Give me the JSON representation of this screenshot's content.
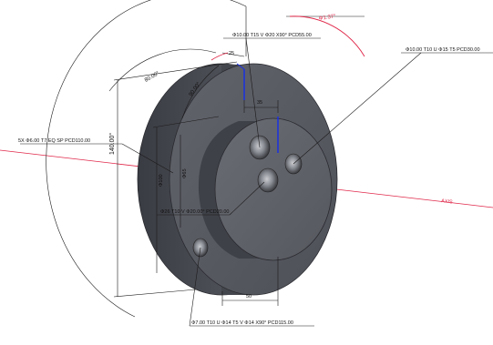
{
  "callouts": {
    "top_hole": "Φ10.00 T15 V Φ20 X90° PCD55.00",
    "right_hole": "Φ10.00 T10 U Φ15 T5 PCD30.00",
    "left_holes": "5X Φ6.00 T7 EQ SP PCD110.00",
    "center_hole": "Φ26 T10 V Φ20.00° PCD20.00",
    "bottom_hole": "Φ7.00 T10 U Φ14 T5 V Φ14 X90° PCD115.00"
  },
  "dimensions": {
    "angle_red": "Φ1.37°",
    "angle_80": "80.00°",
    "angle_90": "90.00°",
    "height_140": "140.00°",
    "dia_100": "Φ100",
    "dia_65": "Φ65",
    "len_35": "35",
    "len_25": "25",
    "len_50": "50"
  },
  "axis_label": "AXIS",
  "colors": {
    "part_body": "#4a4c54",
    "part_face": "#55575f",
    "part_boss": "#5e6068",
    "dim_line": "#1a1a1a",
    "red_annotation": "#e0284a",
    "blue_edge": "#1a30e0"
  }
}
